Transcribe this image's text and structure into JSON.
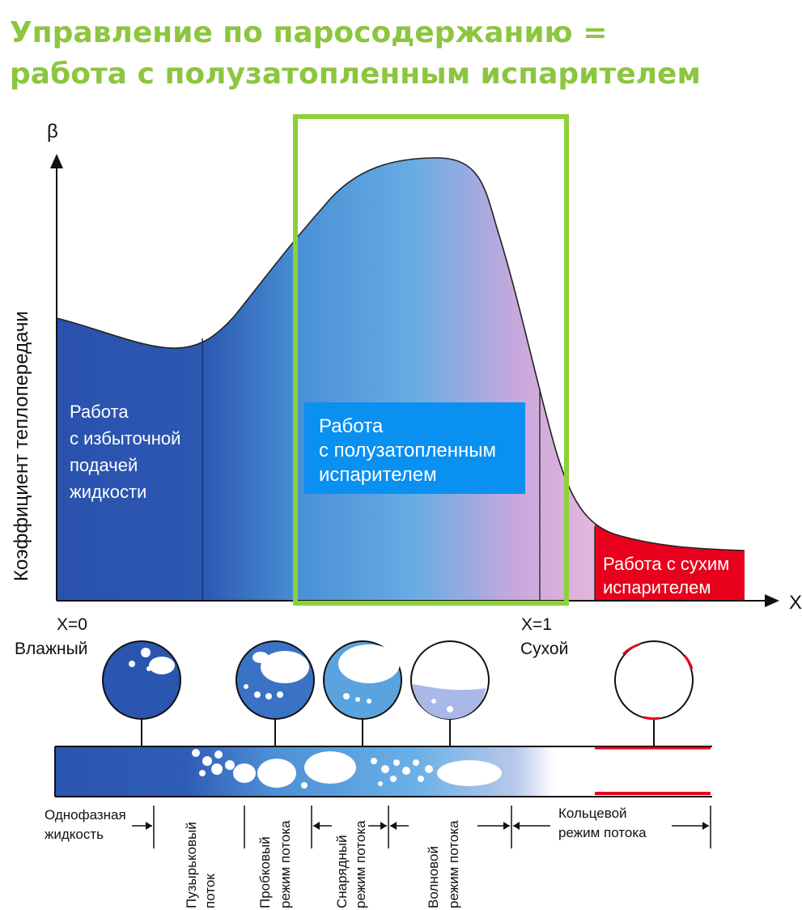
{
  "title": {
    "line1": "Управление по паросодержанию =",
    "line2": "работа с полузатопленным испарителем"
  },
  "axes": {
    "y_symbol": "β",
    "y_label": "Коэффициент теплопередачи",
    "x_symbol": "X",
    "x0_label": "X=0",
    "x1_label": "X=1",
    "wet_label": "Влажный",
    "dry_label": "Сухой"
  },
  "zones": {
    "flooded": [
      "Работа",
      "с избыточной",
      "подачей",
      "жидкости"
    ],
    "semi_flooded": [
      "Работа",
      "с полузатопленным",
      "испарителем"
    ],
    "dry": [
      "Работа с сухим",
      "испарителем"
    ]
  },
  "flow_regimes": {
    "single_phase": [
      "Однофазная",
      "жидкость"
    ],
    "bubbly": [
      "Пузырьковый",
      "поток"
    ],
    "plug": [
      "Пробковый",
      "режим потока"
    ],
    "slug": [
      "Снарядный",
      "режим потока"
    ],
    "wavy": [
      "Волновой",
      "режим потока"
    ],
    "annular": [
      "Кольцевой",
      "режим потока"
    ]
  },
  "colors": {
    "title_green": "#8cc63f",
    "highlight_green": "#8cd13a",
    "deep_blue": "#2a55b0",
    "light_blue": "#5ea8e0",
    "pink": "#d8a8d8",
    "red": "#e8001c",
    "label_box_blue": "#0a90f0"
  }
}
